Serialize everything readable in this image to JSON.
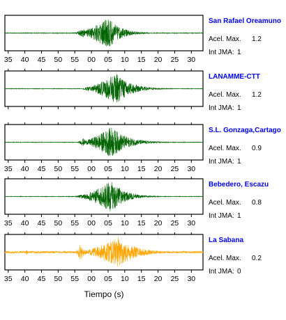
{
  "chart_data": {
    "type": "line",
    "xlabel": "Tiempo (s)",
    "x_ticks": [
      "35",
      "40",
      "45",
      "50",
      "55",
      "00",
      "05",
      "10",
      "15",
      "20",
      "25",
      "30"
    ],
    "xlim_seconds": [
      34,
      93.5
    ],
    "note_x": "time axis in seconds; ticks 35..55 then wrap to 00..30 of next minute",
    "panels": [
      {
        "station": "San Rafael Oreamuno",
        "acel_label": "Acel. Max.",
        "acel_max": "1.2",
        "jma_label": "Int JMA:",
        "jma": "1",
        "color": "#006400",
        "noise_amplitude": 0.02,
        "bursts": [
          {
            "start": 54.5,
            "peak": 65.0,
            "end": 80,
            "amplitude": 0.95
          },
          {
            "start": 54.5,
            "peak": 57.5,
            "end": 62,
            "amplitude": 0.3
          }
        ]
      },
      {
        "station": "LANAMME-CTT",
        "acel_label": "Acel. Max.",
        "acel_max": "1.2",
        "jma_label": "Int JMA:",
        "jma": "1",
        "color": "#006400",
        "noise_amplitude": 0.015,
        "bursts": [
          {
            "start": 56.5,
            "peak": 67.5,
            "end": 85,
            "amplitude": 0.95
          },
          {
            "start": 56.5,
            "peak": 59.0,
            "end": 64,
            "amplitude": 0.15
          }
        ]
      },
      {
        "station": "S.L. Gonzaga,Cartago",
        "acel_label": "Acel. Max.",
        "acel_max": "0.9",
        "jma_label": "Int JMA:",
        "jma": "1",
        "color": "#006400",
        "noise_amplitude": 0.015,
        "bursts": [
          {
            "start": 55.5,
            "peak": 66.0,
            "end": 85,
            "amplitude": 0.95
          },
          {
            "start": 55.5,
            "peak": 57.5,
            "end": 62,
            "amplitude": 0.25
          }
        ]
      },
      {
        "station": "Bebedero, Escazu",
        "acel_label": "Acel. Max.",
        "acel_max": "0.8",
        "jma_label": "Int JMA:",
        "jma": "1",
        "color": "#006400",
        "noise_amplitude": 0.015,
        "bursts": [
          {
            "start": 54.5,
            "peak": 66.0,
            "end": 82,
            "amplitude": 0.95
          },
          {
            "start": 54.5,
            "peak": 57.0,
            "end": 62,
            "amplitude": 0.15
          }
        ]
      },
      {
        "station": "La Sabana",
        "acel_label": "Acel. Max.",
        "acel_max": "0.2",
        "jma_label": "Int JMA:",
        "jma": "0",
        "color": "#FFA500",
        "noise_amplitude": 0.06,
        "bursts": [
          {
            "start": 55.0,
            "peak": 68.0,
            "end": 90,
            "amplitude": 0.9
          },
          {
            "start": 55.0,
            "peak": 56.5,
            "end": 62,
            "amplitude": 0.55
          },
          {
            "start": 39.5,
            "peak": 40.5,
            "end": 42,
            "amplitude": 0.18
          }
        ]
      }
    ]
  },
  "colors": {
    "station_label": "#0000EE",
    "frame": "#000000"
  }
}
